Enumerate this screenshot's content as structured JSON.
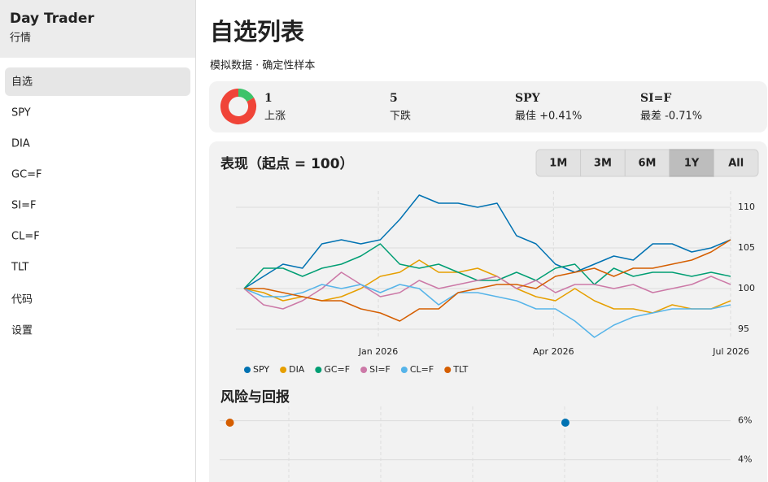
{
  "sidebar": {
    "title": "Day Trader",
    "subtitle": "行情",
    "nav": [
      "自选",
      "SPY",
      "DIA",
      "GC=F",
      "SI=F",
      "CL=F",
      "TLT",
      "代码",
      "设置"
    ],
    "active": "自选"
  },
  "header": {
    "title": "自选列表",
    "subtitle": "模拟数据 · 确定性样本"
  },
  "summary": {
    "up": {
      "value": 1,
      "label": "上涨",
      "color": "#3cc36a"
    },
    "down": {
      "value": 5,
      "label": "下跌",
      "color": "#f04438"
    },
    "best": {
      "symbol": "SPY",
      "label": "最佳 +0.41%"
    },
    "worst": {
      "symbol": "SI=F",
      "label": "最差 -0.71%"
    }
  },
  "performance": {
    "ranges": [
      "1M",
      "3M",
      "6M",
      "1Y",
      "All"
    ],
    "active_range": "1Y"
  },
  "chart_data": [
    {
      "type": "line",
      "title": "表现（起点 = 100）",
      "x": [
        -69,
        -59,
        -49,
        -39,
        -29,
        -19,
        -9,
        1,
        11,
        21,
        31,
        41,
        51,
        61,
        71,
        81,
        91,
        101,
        111,
        121,
        131,
        141,
        151,
        161,
        171,
        181
      ],
      "xlim": [
        -69,
        181
      ],
      "xticks": [
        {
          "value": 0,
          "label": "Jan 2026"
        },
        {
          "value": 90,
          "label": "Apr 2026"
        },
        {
          "value": 181,
          "label": "Jul 2026"
        }
      ],
      "ylim": [
        94,
        112
      ],
      "yticks": [
        95,
        100,
        105,
        110
      ],
      "grid": true,
      "series": [
        {
          "name": "SPY",
          "color": "#0072b2",
          "values": [
            100,
            101.5,
            103,
            102.5,
            105.5,
            106,
            105.5,
            106,
            108.5,
            111.5,
            110.5,
            110.5,
            110,
            110.5,
            106.5,
            105.5,
            103,
            102,
            103,
            104,
            103.5,
            105.5,
            105.5,
            104.5,
            105,
            106
          ]
        },
        {
          "name": "DIA",
          "color": "#e69f00",
          "values": [
            100,
            99.5,
            98.5,
            99,
            98.5,
            99,
            100,
            101.5,
            102,
            103.5,
            102,
            102,
            102.5,
            101.5,
            100,
            99,
            98.5,
            100,
            98.5,
            97.5,
            97.5,
            97,
            98,
            97.5,
            97.5,
            98.5
          ]
        },
        {
          "name": "GC=F",
          "color": "#009e73",
          "values": [
            100,
            102.5,
            102.5,
            101.5,
            102.5,
            103,
            104,
            105.5,
            103,
            102.5,
            103,
            102,
            101,
            101,
            102,
            101,
            102.5,
            103,
            100.5,
            102.5,
            101.5,
            102,
            102,
            101.5,
            102,
            101.5
          ]
        },
        {
          "name": "SI=F",
          "color": "#cc79a7",
          "values": [
            100,
            98,
            97.5,
            98.5,
            100,
            102,
            100.5,
            99,
            99.5,
            101,
            100,
            100.5,
            101,
            101.5,
            100,
            101,
            99.5,
            100.5,
            100.5,
            100,
            100.5,
            99.5,
            100,
            100.5,
            101.5,
            100.5
          ]
        },
        {
          "name": "CL=F",
          "color": "#56b4e9",
          "values": [
            100,
            99,
            99,
            99.5,
            100.5,
            100,
            100.5,
            99.5,
            100.5,
            100,
            98,
            99.5,
            99.5,
            99,
            98.5,
            97.5,
            97.5,
            96,
            94,
            95.5,
            96.5,
            97,
            97.5,
            97.5,
            97.5,
            98
          ]
        },
        {
          "name": "TLT",
          "color": "#d55e00",
          "values": [
            100,
            100,
            99.5,
            99,
            98.5,
            98.5,
            97.5,
            97,
            96,
            97.5,
            97.5,
            99.5,
            100,
            100.5,
            100.5,
            100,
            101.5,
            102,
            102.5,
            101.5,
            102.5,
            102.5,
            103,
            103.5,
            104.5,
            106
          ]
        }
      ]
    },
    {
      "type": "scatter",
      "title": "风险与回报",
      "xlim": [
        0,
        30
      ],
      "ylim": [
        3,
        6.4
      ],
      "yticks": [
        {
          "value": 6,
          "label": "6%"
        },
        {
          "value": 4,
          "label": "4%"
        }
      ],
      "series": [
        {
          "color": "#d55e00",
          "x": [
            0.6
          ],
          "values": [
            5.9
          ]
        },
        {
          "color": "#0072b2",
          "x": [
            20.3
          ],
          "values": [
            5.9
          ]
        }
      ]
    }
  ]
}
